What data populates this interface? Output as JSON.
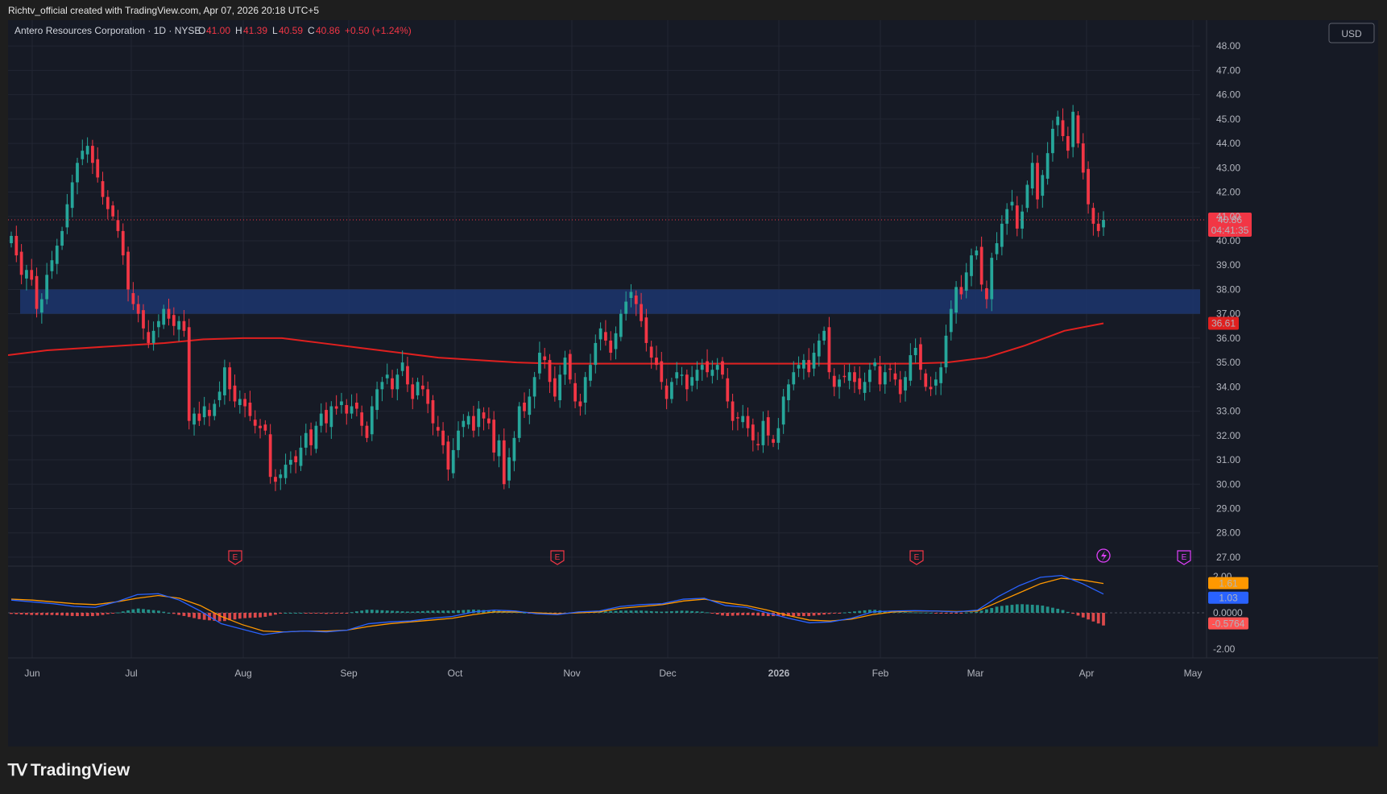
{
  "header": {
    "attribution": "Richtv_official created with TradingView.com, Apr 07, 2026 20:18 UTC+5",
    "symbol_line": "Antero Resources Corporation · 1D · NYSE",
    "o_label": "O",
    "o_value": "41.00",
    "h_label": "H",
    "h_value": "41.39",
    "l_label": "L",
    "l_value": "40.59",
    "c_label": "C",
    "c_value": "40.86",
    "change": "+0.50 (+1.24%)"
  },
  "currency_label": "USD",
  "footer": {
    "brand": "TradingView"
  },
  "colors": {
    "up": "#26a69a",
    "down": "#f23645",
    "ma": "#e0201f",
    "zone": "#1e3a78",
    "macd": "#2962ff",
    "signal": "#ff9800",
    "hist_pos": "#26a69a",
    "hist_neg": "#ff5252"
  },
  "chart_data": {
    "type": "candlestick",
    "interval": "1D",
    "x_ticks": [
      "Jun",
      "Jul",
      "Aug",
      "Sep",
      "Oct",
      "Nov",
      "Dec",
      "2026",
      "Feb",
      "Mar",
      "Apr",
      "May"
    ],
    "y_ticks": [
      "48.00",
      "47.00",
      "46.00",
      "45.00",
      "44.00",
      "43.00",
      "42.00",
      "41.00",
      "40.00",
      "39.00",
      "38.00",
      "37.00",
      "36.00",
      "35.00",
      "34.00",
      "33.00",
      "32.00",
      "31.00",
      "30.00",
      "29.00",
      "28.00",
      "27.00"
    ],
    "ylim": [
      26.7,
      48.8
    ],
    "last_price": {
      "value": 40.86,
      "label": "40.86",
      "countdown": "04:41:35"
    },
    "ma_label": {
      "value": 36.61,
      "label": "36.61"
    },
    "zone": {
      "low": 37.0,
      "high": 38.0
    },
    "earnings_markers": [
      "E",
      "E",
      "E",
      "E"
    ],
    "closes": [
      40.2,
      39.4,
      38.6,
      38.8,
      38.4,
      37.2,
      37.6,
      38.6,
      39.2,
      39.8,
      40.4,
      41.5,
      42.4,
      43.2,
      43.7,
      43.9,
      43.2,
      42.6,
      41.8,
      41.3,
      41.0,
      40.4,
      39.4,
      38.0,
      37.4,
      37.0,
      36.4,
      35.8,
      36.3,
      36.7,
      37.2,
      36.8,
      36.5,
      36.7,
      36.3,
      32.6,
      32.9,
      32.6,
      33.2,
      32.8,
      33.3,
      33.8,
      34.8,
      33.9,
      33.4,
      33.5,
      33.2,
      32.8,
      32.4,
      32.3,
      32.2,
      30.3,
      30.1,
      30.4,
      30.8,
      31.0,
      30.9,
      31.5,
      32.1,
      31.6,
      32.4,
      32.9,
      32.5,
      33.2,
      33.1,
      33.4,
      32.9,
      33.2,
      33.1,
      32.4,
      31.9,
      33.2,
      33.9,
      34.2,
      34.5,
      33.9,
      34.5,
      35.0,
      34.1,
      33.5,
      34.2,
      33.9,
      33.3,
      32.5,
      32.2,
      31.6,
      30.6,
      31.4,
      32.2,
      32.6,
      32.8,
      32.2,
      33.1,
      32.7,
      32.5,
      31.3,
      31.8,
      30.0,
      31.1,
      31.9,
      33.2,
      33.0,
      33.6,
      34.4,
      35.4,
      35.1,
      34.2,
      33.6,
      34.5,
      35.2,
      34.3,
      33.4,
      33.2,
      34.4,
      34.9,
      35.8,
      36.4,
      35.9,
      35.4,
      36.2,
      37.0,
      37.5,
      37.9,
      37.4,
      36.7,
      35.8,
      35.2,
      34.9,
      34.2,
      33.5,
      34.2,
      34.6,
      34.5,
      33.9,
      34.4,
      34.7,
      34.9,
      34.6,
      34.7,
      34.9,
      34.5,
      33.4,
      32.6,
      32.7,
      32.8,
      32.3,
      31.8,
      31.6,
      32.6,
      32.0,
      31.7,
      32.3,
      33.6,
      34.1,
      34.6,
      34.9,
      35.1,
      34.6,
      35.4,
      35.9,
      36.3,
      34.6,
      34.0,
      34.3,
      34.4,
      34.6,
      34.2,
      33.9,
      34.2,
      34.7,
      35.0,
      34.1,
      34.6,
      34.7,
      34.3,
      33.7,
      34.4,
      35.3,
      35.6,
      34.7,
      34.0,
      33.9,
      34.3,
      34.8,
      36.1,
      37.2,
      38.1,
      37.8,
      38.7,
      39.4,
      39.6,
      38.2,
      37.6,
      39.3,
      39.9,
      40.7,
      41.3,
      41.6,
      40.5,
      41.2,
      42.3,
      43.2,
      41.7,
      42.7,
      43.6,
      44.6,
      45.1,
      44.3,
      43.7,
      45.3,
      44.0,
      42.8,
      41.5,
      40.7,
      40.4,
      40.86
    ],
    "wicks": 0.35,
    "ma200": [
      35.3,
      35.5,
      35.6,
      35.7,
      35.8,
      35.95,
      36.0,
      36.0,
      35.8,
      35.6,
      35.4,
      35.2,
      35.1,
      35.0,
      34.95,
      34.95,
      34.95,
      34.95,
      34.95,
      34.95,
      34.95,
      34.95,
      34.95,
      34.95,
      35.0,
      35.2,
      35.7,
      36.3,
      36.61
    ],
    "macd": {
      "ylim": [
        -2.3,
        2.3
      ],
      "y_ticks": [
        "2.00",
        "0.0000",
        "-2.00"
      ],
      "macd_label": "1.03",
      "signal_label": "1.61",
      "hist_label": "-0.5764",
      "macd_line": [
        0.7,
        0.6,
        0.5,
        0.35,
        0.3,
        0.6,
        1.0,
        1.05,
        0.7,
        0.1,
        -0.6,
        -0.9,
        -1.2,
        -1.05,
        -1.0,
        -1.05,
        -0.95,
        -0.6,
        -0.5,
        -0.45,
        -0.3,
        -0.2,
        0.05,
        0.15,
        0.1,
        -0.05,
        -0.1,
        0.05,
        0.1,
        0.35,
        0.45,
        0.5,
        0.75,
        0.8,
        0.4,
        0.3,
        0.0,
        -0.3,
        -0.55,
        -0.5,
        -0.3,
        0.05,
        0.1,
        0.12,
        0.1,
        0.05,
        0.15,
        0.9,
        1.5,
        1.95,
        2.05,
        1.6,
        1.03
      ],
      "signal_line": [
        0.75,
        0.7,
        0.6,
        0.5,
        0.45,
        0.6,
        0.8,
        0.95,
        0.8,
        0.4,
        -0.2,
        -0.65,
        -1.0,
        -1.05,
        -1.0,
        -1.0,
        -0.95,
        -0.75,
        -0.6,
        -0.5,
        -0.4,
        -0.3,
        -0.1,
        0.05,
        0.05,
        0.0,
        -0.05,
        0.0,
        0.05,
        0.25,
        0.35,
        0.45,
        0.65,
        0.75,
        0.55,
        0.4,
        0.15,
        -0.15,
        -0.4,
        -0.45,
        -0.35,
        -0.1,
        0.05,
        0.1,
        0.1,
        0.07,
        0.1,
        0.6,
        1.1,
        1.6,
        1.9,
        1.8,
        1.61
      ]
    }
  }
}
